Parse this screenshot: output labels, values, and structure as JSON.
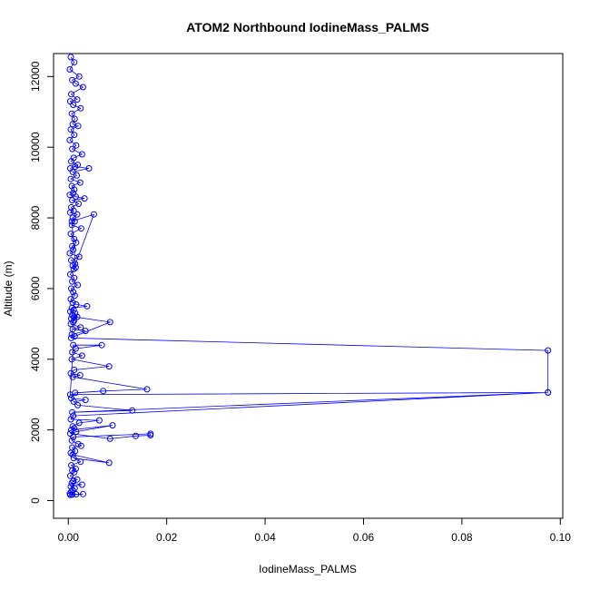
{
  "chart_data": {
    "type": "line",
    "title": "ATOM2 Northbound IodineMass_PALMS",
    "xlabel": "IodineMass_PALMS",
    "ylabel": "Altitude (m)",
    "xlim": [
      -0.003,
      0.1005
    ],
    "ylim": [
      -500,
      12650
    ],
    "x_ticks": [
      0.0,
      0.02,
      0.04,
      0.06,
      0.08,
      0.1
    ],
    "x_tick_labels": [
      "0.00",
      "0.02",
      "0.04",
      "0.06",
      "0.08",
      "0.10"
    ],
    "y_ticks": [
      0,
      2000,
      4000,
      6000,
      8000,
      10000,
      12000
    ],
    "y_tick_labels": [
      "0",
      "2000",
      "4000",
      "6000",
      "8000",
      "10000",
      "12000"
    ],
    "grid": false,
    "legend": "none",
    "marker": "open-circle",
    "colors": {
      "series": "#0000ff",
      "axis": "#000000"
    },
    "series": [
      {
        "x": [
          0.0005,
          0.0012,
          0.0003,
          0.0022,
          0.0008,
          0.0015,
          0.003,
          0.0006,
          0.0018,
          0.0004,
          0.001,
          0.0025,
          0.0007,
          0.0013,
          0.0009,
          0.002,
          0.0005,
          0.0012,
          0.0003,
          0.0016,
          0.0008,
          0.0028,
          0.0011,
          0.0006,
          0.0019,
          0.0004,
          0.0014,
          0.0042,
          0.0009,
          0.0017,
          0.0005,
          0.0024,
          0.0007,
          0.0012,
          0.001,
          0.0003,
          0.0015,
          0.0033,
          0.0008,
          0.0021,
          0.0006,
          0.0011,
          0.0004,
          0.0018,
          0.0009,
          0.0013,
          0.0007,
          0.0026,
          0.0005,
          0.0012,
          0.0016,
          0.0008,
          0.001,
          0.0003,
          0.0022,
          0.0006,
          0.0014,
          0.0009,
          0.0011,
          0.0052,
          0.0007,
          0.0015,
          0.0004,
          0.0012,
          0.0008,
          0.0019,
          0.0006,
          0.001,
          0.0013,
          0.0005,
          0.0009,
          0.0016,
          0.0038,
          0.0007,
          0.0011,
          0.0004,
          0.0014,
          0.0008,
          0.0018,
          0.0006,
          0.0012,
          0.001,
          0.0005,
          0.0025,
          0.0009,
          0.0035,
          0.0007,
          0.0013,
          0.0085,
          0.0012,
          0.0006,
          0.0975,
          0.0975,
          0.0004,
          0.001,
          0.0068,
          0.0015,
          0.0008,
          0.0028,
          0.0007,
          0.0083,
          0.0012,
          0.0005,
          0.0024,
          0.0009,
          0.016,
          0.0071,
          0.0014,
          0.0006,
          0.0035,
          0.0011,
          0.0019,
          0.013,
          0.0008,
          0.0975,
          0.001,
          0.0005,
          0.0063,
          0.0022,
          0.0009,
          0.0012,
          0.0006,
          0.009,
          0.0016,
          0.0004,
          0.0085,
          0.0137,
          0.0167,
          0.0167,
          0.001,
          0.0007,
          0.002,
          0.0026,
          0.0008,
          0.0014,
          0.0005,
          0.0009,
          0.0083,
          0.0011,
          0.0025,
          0.0006,
          0.0015,
          0.0008,
          0.0012,
          0.0004,
          0.0018,
          0.001,
          0.0007,
          0.0028,
          0.0005,
          0.0013,
          0.0009,
          0.0006,
          0.0003,
          0.0016,
          0.003,
          0.0008,
          0.0004
        ],
        "y": [
          12550,
          12400,
          12200,
          12000,
          11900,
          11800,
          11700,
          11500,
          11350,
          11300,
          11200,
          11100,
          10950,
          10800,
          10650,
          10600,
          10500,
          10350,
          10200,
          10050,
          9950,
          9800,
          9700,
          9600,
          9500,
          9400,
          9450,
          9400,
          9300,
          9200,
          9100,
          9000,
          8900,
          8800,
          8700,
          8650,
          8600,
          8550,
          8500,
          8400,
          8300,
          8200,
          8150,
          8100,
          8000,
          7900,
          7800,
          7700,
          7550,
          7400,
          7300,
          7200,
          7100,
          7000,
          6900,
          6800,
          6700,
          6650,
          6550,
          8100,
          7900,
          6600,
          6400,
          6300,
          6200,
          6100,
          6000,
          5900,
          5800,
          5700,
          5600,
          5550,
          5500,
          5450,
          5400,
          5350,
          5300,
          5250,
          5200,
          5150,
          5100,
          5050,
          5000,
          4900,
          4850,
          4800,
          4700,
          4650,
          5050,
          5200,
          4600,
          4250,
          3060,
          3000,
          4400,
          4400,
          4300,
          4200,
          4100,
          4000,
          3800,
          3700,
          3600,
          3550,
          3500,
          3150,
          3100,
          3050,
          2900,
          2850,
          2800,
          2700,
          2550,
          2500,
          3060,
          2400,
          2300,
          2270,
          2200,
          2100,
          2050,
          2000,
          2130,
          1950,
          1900,
          1750,
          1830,
          1850,
          1890,
          1800,
          1700,
          1600,
          1550,
          1500,
          1400,
          1350,
          1300,
          1070,
          1200,
          1100,
          1000,
          900,
          850,
          800,
          700,
          600,
          550,
          500,
          450,
          400,
          350,
          300,
          250,
          200,
          180,
          185,
          170,
          160
        ]
      }
    ]
  }
}
